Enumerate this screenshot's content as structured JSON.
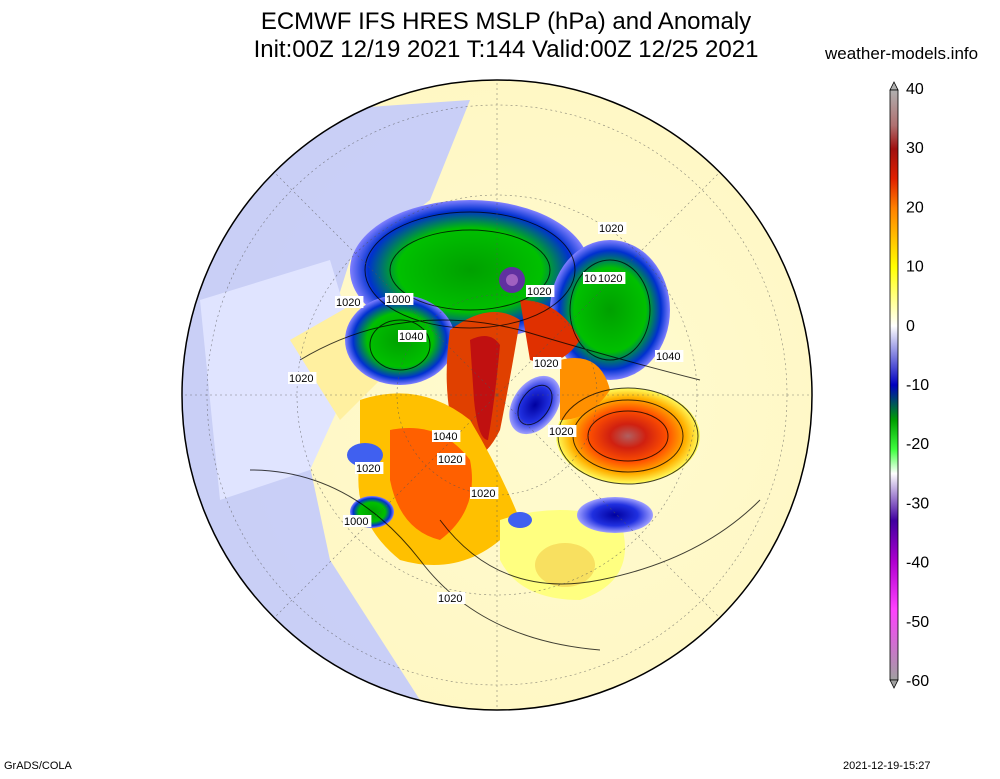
{
  "header": {
    "title_line1": "ECMWF IFS HRES MSLP (hPa) and Anomaly",
    "title_line2": "Init:00Z 12/19 2021 T:144 Valid:00Z 12/25 2021",
    "source": "weather-models.info"
  },
  "footer": {
    "software": "GrADS/COLA",
    "timestamp": "2021-12-19-15:27"
  },
  "map": {
    "projection": "polar-stereographic-north",
    "pressure_labels": [
      {
        "name": "contour-label-1020-a",
        "text": "1020"
      },
      {
        "name": "contour-label-1000-a",
        "text": "1000"
      },
      {
        "name": "contour-label-1000-b",
        "text": "1000"
      },
      {
        "name": "contour-label-1020-b",
        "text": "1020"
      },
      {
        "name": "contour-label-1020-c",
        "text": "1020"
      },
      {
        "name": "contour-label-1040-a",
        "text": "1040"
      },
      {
        "name": "contour-label-1020-d",
        "text": "1020"
      },
      {
        "name": "contour-label-1020-e",
        "text": "1020"
      },
      {
        "name": "contour-label-1040-b",
        "text": "1040"
      },
      {
        "name": "contour-label-1040-c",
        "text": "1040"
      },
      {
        "name": "contour-label-1020-f",
        "text": "1020"
      },
      {
        "name": "contour-label-1020-g",
        "text": "1020"
      },
      {
        "name": "contour-label-1020-h",
        "text": "1020"
      },
      {
        "name": "contour-label-1020-i",
        "text": "1020"
      },
      {
        "name": "contour-label-1000-c",
        "text": "1000"
      },
      {
        "name": "contour-label-1020-j",
        "text": "1020"
      },
      {
        "name": "contour-label-1020-k",
        "text": "1020"
      }
    ]
  },
  "colorbar": {
    "labels": [
      "40",
      "30",
      "20",
      "10",
      "0",
      "-10",
      "-20",
      "-30",
      "-40",
      "-50",
      "-60"
    ],
    "stops": [
      "#a0a0a0",
      "#b06060",
      "#c01010",
      "#e03000",
      "#ff9000",
      "#ffff00",
      "#ffffff",
      "#a0a0ff",
      "#0000c0",
      "#00c000",
      "#a0ffa0",
      "#ffffff",
      "#6030a0",
      "#a000c0",
      "#ff40ff",
      "#a0a0a0"
    ]
  }
}
